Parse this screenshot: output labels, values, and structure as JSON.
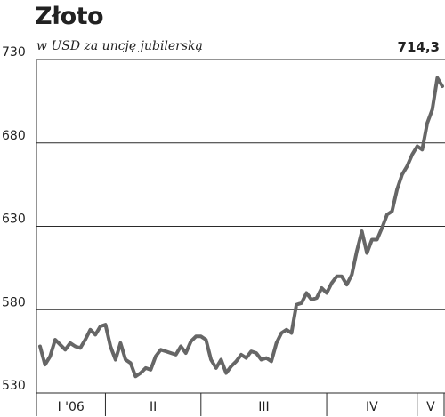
{
  "colors": {
    "line": "#666666",
    "grid": "#2a2a2a",
    "text": "#222222",
    "background": "#ffffff"
  },
  "chart_data": {
    "type": "line",
    "title": "Złoto",
    "subtitle": "w USD za uncję jubilerską",
    "last_value_label": "714,3",
    "ylim": [
      530,
      730
    ],
    "yticks": [
      {
        "value": 730,
        "label": "730"
      },
      {
        "value": 680,
        "label": "680"
      },
      {
        "value": 630,
        "label": "630"
      },
      {
        "value": 580,
        "label": "580"
      },
      {
        "value": 530,
        "label": "530"
      }
    ],
    "grid": true,
    "x_periods": [
      "I '06",
      "II",
      "III",
      "IV",
      "V"
    ],
    "x_period_ranges": [
      [
        0,
        13
      ],
      [
        13,
        32
      ],
      [
        32,
        57
      ],
      [
        57,
        75
      ],
      [
        75,
        80
      ]
    ],
    "xlim": [
      0,
      80
    ],
    "series": [
      {
        "x": [
          0,
          1,
          2,
          3,
          4,
          5,
          6,
          7,
          8,
          9,
          10,
          11,
          12,
          13,
          14,
          15,
          16,
          17,
          18,
          19,
          20,
          21,
          22,
          23,
          24,
          25,
          26,
          27,
          28,
          29,
          30,
          31,
          32,
          33,
          34,
          35,
          36,
          37,
          38,
          39,
          40,
          41,
          42,
          43,
          44,
          45,
          46,
          47,
          48,
          49,
          50,
          51,
          52,
          53,
          54,
          55,
          56,
          57,
          58,
          59,
          60,
          61,
          62,
          63,
          64,
          65,
          66,
          67,
          68,
          69,
          70,
          71,
          72,
          73,
          74,
          75,
          76,
          77,
          78,
          79,
          80
        ],
        "values": [
          558,
          547,
          552,
          562,
          559,
          556,
          560,
          558,
          557,
          562,
          568,
          565,
          570,
          571,
          558,
          550,
          560,
          550,
          548,
          540,
          542,
          545,
          544,
          552,
          556,
          555,
          554,
          553,
          558,
          554,
          561,
          564,
          564,
          562,
          550,
          545,
          550,
          542,
          546,
          549,
          553,
          551,
          555,
          554,
          550,
          551,
          549,
          560,
          566,
          568,
          566,
          583,
          584,
          590,
          586,
          587,
          593,
          590,
          596,
          600,
          600,
          595,
          601,
          615,
          627,
          614,
          622,
          622,
          629,
          637,
          639,
          652,
          661,
          666,
          673,
          678,
          676,
          692,
          700,
          719,
          714
        ]
      }
    ]
  }
}
